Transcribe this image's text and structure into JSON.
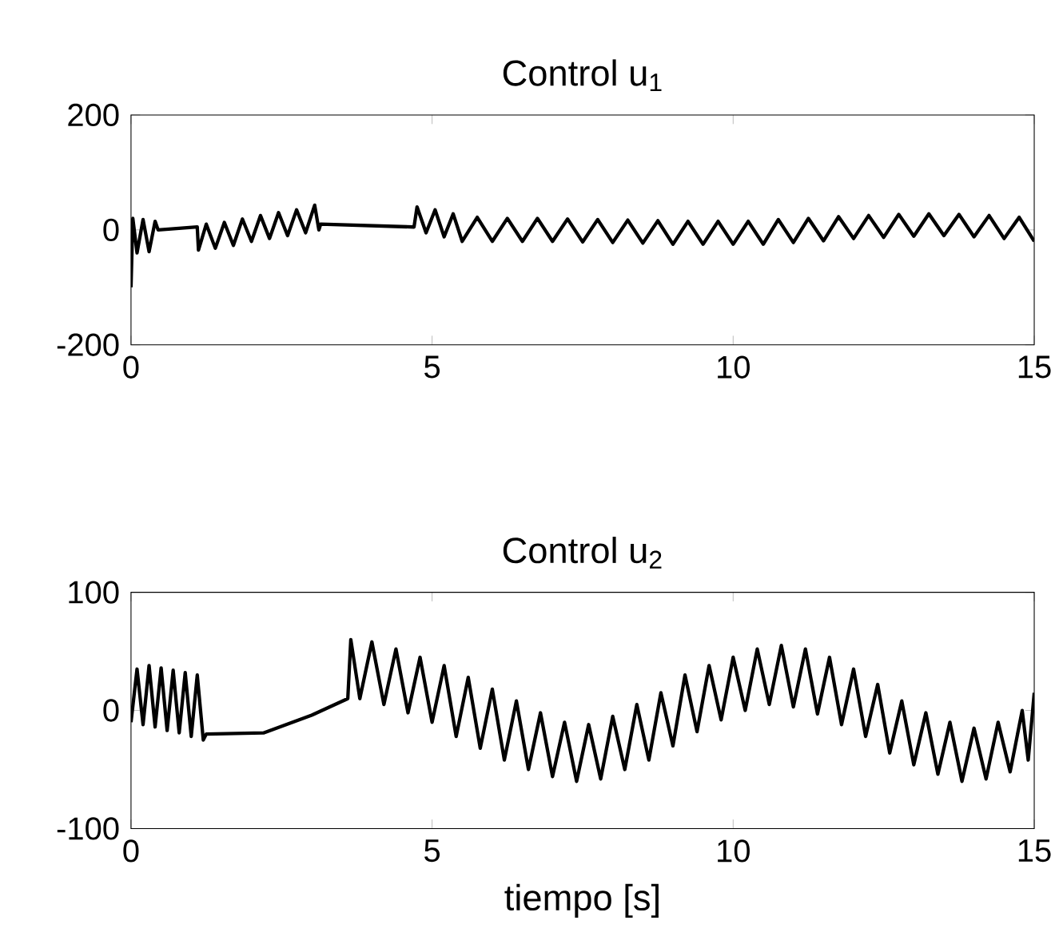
{
  "chart_data": [
    {
      "type": "line",
      "title": "Control u$_{1}$",
      "xlim": [
        0,
        15
      ],
      "xticks": [
        0,
        5,
        10,
        15
      ],
      "ylim": [
        -200,
        200
      ],
      "yticks": [
        -200,
        0,
        200
      ],
      "line_style": "solid",
      "marker": "none",
      "series": [
        {
          "color": "#000000",
          "x": [
            0,
            0.03,
            0.1,
            0.2,
            0.3,
            0.4,
            0.45,
            1.1,
            1.12,
            1.25,
            1.4,
            1.55,
            1.7,
            1.85,
            2.0,
            2.15,
            2.3,
            2.45,
            2.6,
            2.75,
            2.9,
            3.05,
            3.12,
            3.15,
            4.7,
            4.75,
            4.9,
            5.05,
            5.2,
            5.35,
            5.5,
            5.75,
            6.0,
            6.25,
            6.5,
            6.75,
            7.0,
            7.25,
            7.5,
            7.75,
            8.0,
            8.25,
            8.5,
            8.75,
            9.0,
            9.25,
            9.5,
            9.75,
            10.0,
            10.25,
            10.5,
            10.75,
            11.0,
            11.25,
            11.5,
            11.75,
            12.0,
            12.25,
            12.5,
            12.75,
            13.0,
            13.25,
            13.5,
            13.75,
            14.0,
            14.25,
            14.5,
            14.75,
            15.0
          ],
          "values": [
            -100,
            20,
            -40,
            18,
            -38,
            15,
            0,
            5,
            -35,
            10,
            -32,
            13,
            -27,
            19,
            -20,
            25,
            -15,
            30,
            -10,
            35,
            -5,
            43,
            0,
            10,
            5,
            40,
            -5,
            35,
            -12,
            28,
            -20,
            22,
            -20,
            20,
            -20,
            20,
            -20,
            19,
            -21,
            18,
            -22,
            17,
            -23,
            16,
            -25,
            15,
            -25,
            15,
            -25,
            15,
            -25,
            18,
            -22,
            20,
            -19,
            23,
            -15,
            25,
            -13,
            27,
            -11,
            28,
            -10,
            27,
            -12,
            25,
            -15,
            22,
            -20
          ]
        }
      ]
    },
    {
      "type": "line",
      "title": "Control u$_{2}$",
      "xlabel": "tiempo [s]",
      "xlim": [
        0,
        15
      ],
      "xticks": [
        0,
        5,
        10,
        15
      ],
      "ylim": [
        -100,
        100
      ],
      "yticks": [
        -100,
        0,
        100
      ],
      "line_style": "solid",
      "marker": "none",
      "series": [
        {
          "color": "#000000",
          "x": [
            0,
            0.1,
            0.2,
            0.3,
            0.4,
            0.5,
            0.6,
            0.7,
            0.8,
            0.9,
            1.0,
            1.1,
            1.2,
            1.25,
            2.2,
            3.0,
            3.6,
            3.65,
            3.8,
            4.0,
            4.2,
            4.4,
            4.6,
            4.8,
            5.0,
            5.2,
            5.4,
            5.6,
            5.8,
            6.0,
            6.2,
            6.4,
            6.6,
            6.8,
            7.0,
            7.2,
            7.4,
            7.6,
            7.8,
            8.0,
            8.2,
            8.4,
            8.6,
            8.8,
            9.0,
            9.2,
            9.4,
            9.6,
            9.8,
            10.0,
            10.2,
            10.4,
            10.6,
            10.8,
            11.0,
            11.2,
            11.4,
            11.6,
            11.8,
            12.0,
            12.2,
            12.4,
            12.6,
            12.8,
            13.0,
            13.2,
            13.4,
            13.6,
            13.8,
            14.0,
            14.2,
            14.4,
            14.6,
            14.8,
            14.9,
            15.0
          ],
          "values": [
            -10,
            35,
            -12,
            38,
            -14,
            36,
            -17,
            34,
            -19,
            32,
            -22,
            30,
            -25,
            -20,
            -19,
            -4,
            10,
            60,
            10,
            58,
            5,
            52,
            -2,
            45,
            -10,
            38,
            -22,
            28,
            -32,
            18,
            -42,
            8,
            -50,
            -2,
            -56,
            -10,
            -60,
            -12,
            -58,
            -5,
            -50,
            5,
            -42,
            15,
            -30,
            30,
            -18,
            38,
            -8,
            45,
            0,
            52,
            5,
            55,
            3,
            52,
            -3,
            45,
            -12,
            35,
            -22,
            22,
            -36,
            8,
            -46,
            -2,
            -54,
            -10,
            -60,
            -15,
            -58,
            -10,
            -52,
            0,
            -42,
            15
          ]
        }
      ]
    }
  ]
}
